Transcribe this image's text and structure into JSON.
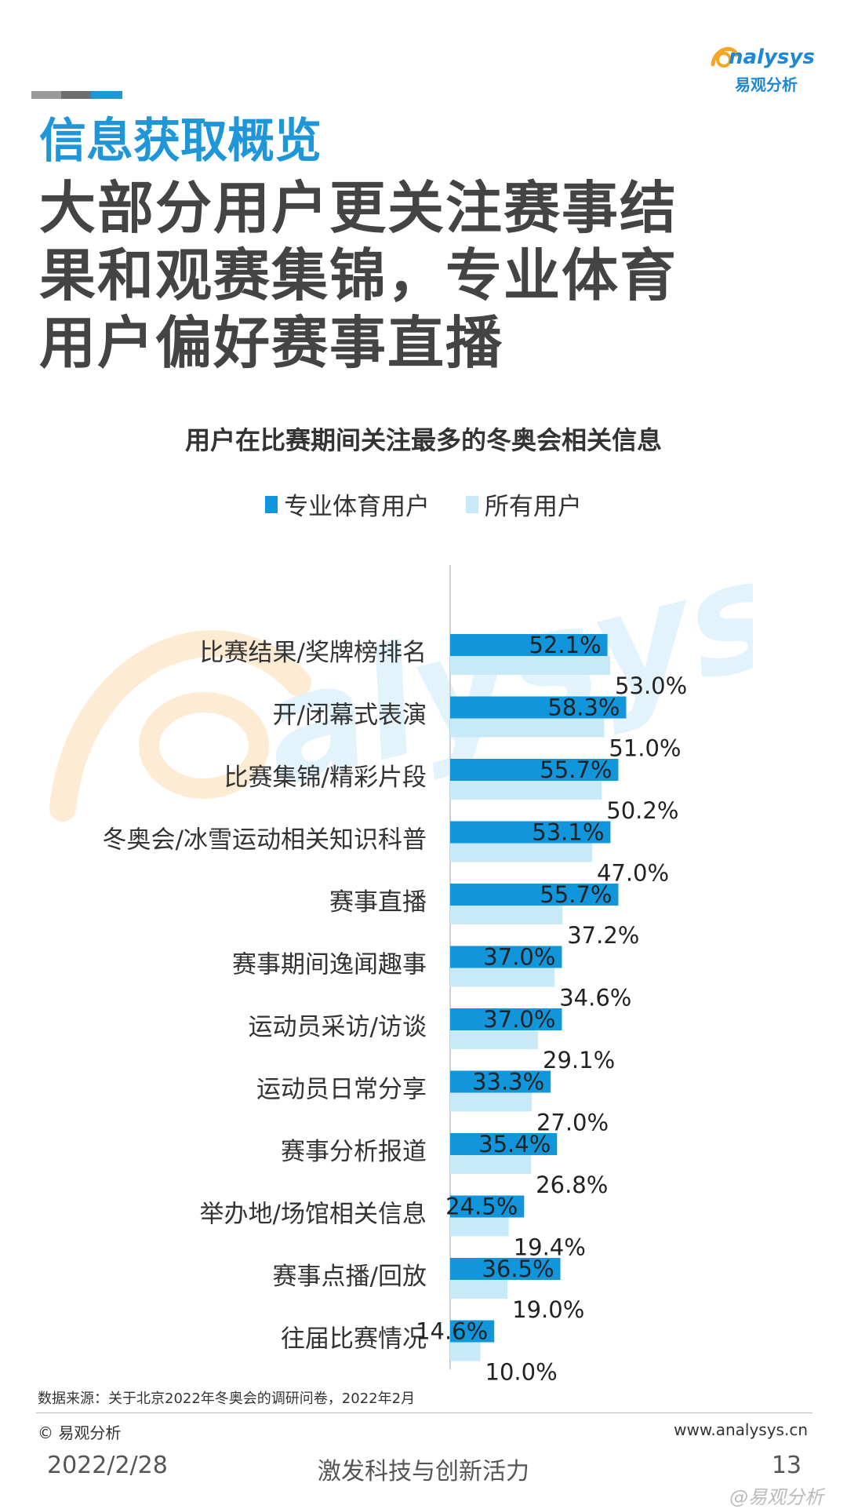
{
  "header": {
    "logo_text": "nalysys",
    "logo_cn": "易观分析",
    "section_title": "信息获取概览",
    "headline_lines": [
      "大部分用户更关注赛事结",
      "果和观赛集锦，专业体育",
      "用户偏好赛事直播"
    ]
  },
  "colors": {
    "accent": "#1e96d8",
    "series_pro": "#1296db",
    "series_all": "#c8e9f8",
    "deco": [
      "#9a9a9a",
      "#6e6e6e",
      "#1e96d8"
    ]
  },
  "chart_data": {
    "type": "bar",
    "orientation": "horizontal",
    "title": "用户在比赛期间关注最多的冬奥会相关信息",
    "legend_position": "top",
    "categories": [
      "比赛结果/奖牌榜排名",
      "开/闭幕式表演",
      "比赛集锦/精彩片段",
      "冬奥会/冰雪运动相关知识科普",
      "赛事直播",
      "赛事期间逸闻趣事",
      "运动员采访/访谈",
      "运动员日常分享",
      "赛事分析报道",
      "举办地/场馆相关信息",
      "赛事点播/回放",
      "往届比赛情况"
    ],
    "series": [
      {
        "name": "专业体育用户",
        "values": [
          52.1,
          58.3,
          55.7,
          53.1,
          55.7,
          37.0,
          37.0,
          33.3,
          35.4,
          24.5,
          36.5,
          14.6
        ],
        "labels": [
          "52.1%",
          "58.3%",
          "55.7%",
          "53.1%",
          "55.7%",
          "37.0%",
          "37.0%",
          "33.3%",
          "35.4%",
          "24.5%",
          "36.5%",
          "14.6%"
        ]
      },
      {
        "name": "所有用户",
        "values": [
          53.0,
          51.0,
          50.2,
          47.0,
          37.2,
          34.6,
          29.1,
          27.0,
          26.8,
          19.4,
          19.0,
          10.0
        ],
        "labels": [
          "53.0%",
          "51.0%",
          "50.2%",
          "47.0%",
          "37.2%",
          "34.6%",
          "29.1%",
          "27.0%",
          "26.8%",
          "19.4%",
          "19.0%",
          "10.0%"
        ]
      }
    ],
    "unit": "%",
    "grid": false
  },
  "footer": {
    "source": "数据来源：关于北京2022年冬奥会的调研问卷，2022年2月",
    "copyright": "© 易观分析",
    "website": "www.analysys.cn",
    "date": "2022/2/28",
    "slogan": "激发科技与创新活力",
    "page": "13",
    "stamp": "@易观分析"
  }
}
